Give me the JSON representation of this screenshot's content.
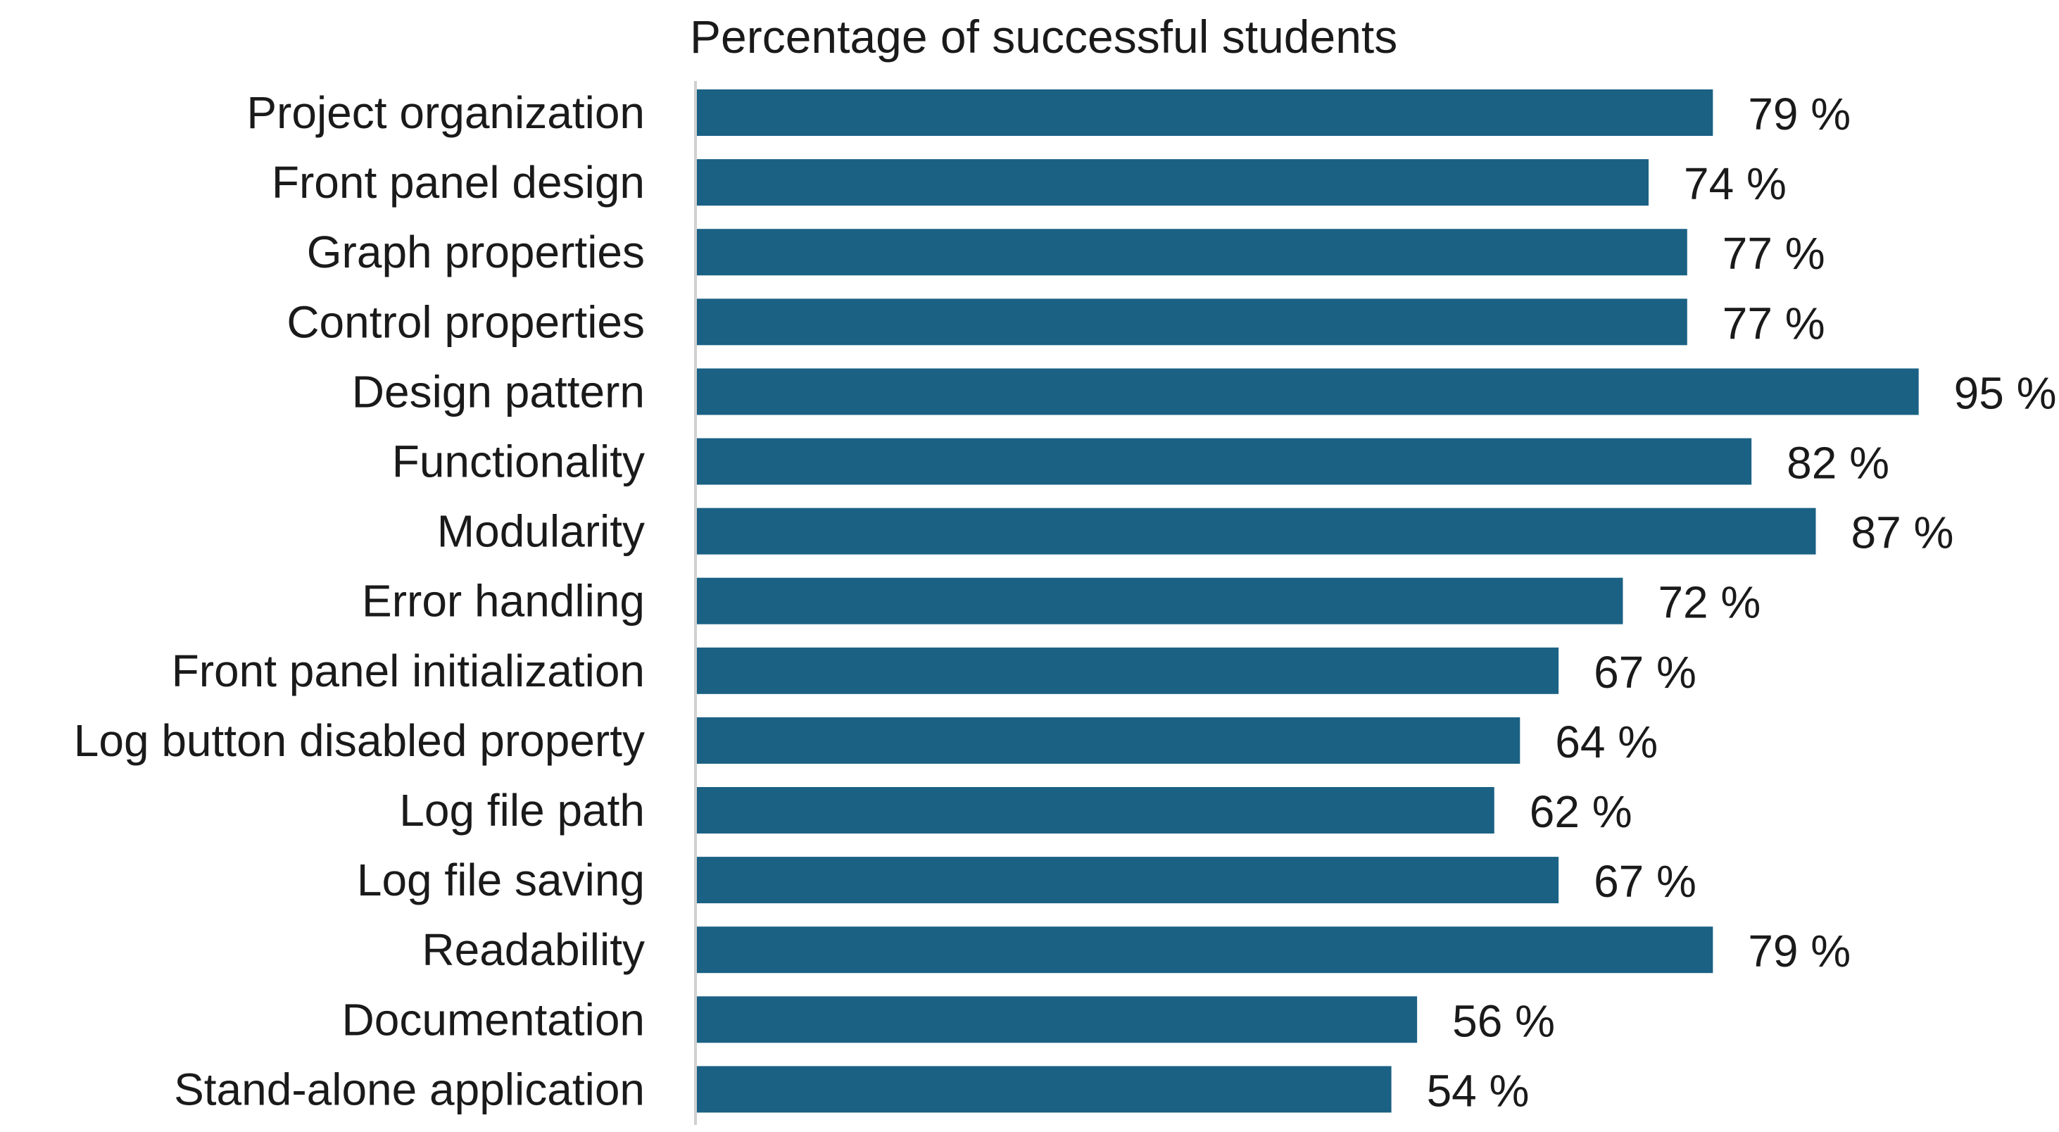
{
  "chart_data": {
    "type": "bar",
    "orientation": "horizontal",
    "title": "Percentage of successful students",
    "categories": [
      "Project organization",
      "Front panel design",
      "Graph properties",
      "Control properties",
      "Design pattern",
      "Functionality",
      "Modularity",
      "Error handling",
      "Front panel initialization",
      "Log button disabled property",
      "Log file path",
      "Log file saving",
      "Readability",
      "Documentation",
      "Stand-alone application"
    ],
    "values": [
      79,
      74,
      77,
      77,
      95,
      82,
      87,
      72,
      67,
      64,
      62,
      67,
      79,
      56,
      54
    ],
    "value_labels": [
      "79 %",
      "74 %",
      "77 %",
      "77 %",
      "95 %",
      "82 %",
      "87 %",
      "72 %",
      "67 %",
      "64 %",
      "62 %",
      "67 %",
      "79 %",
      "56 %",
      "54 %"
    ],
    "xlim": [
      0,
      100
    ],
    "grid": false,
    "legend": "none",
    "colors": {
      "bar": "#1a6184",
      "axis": "#d0d0d0",
      "text": "#1a1a1a"
    }
  }
}
